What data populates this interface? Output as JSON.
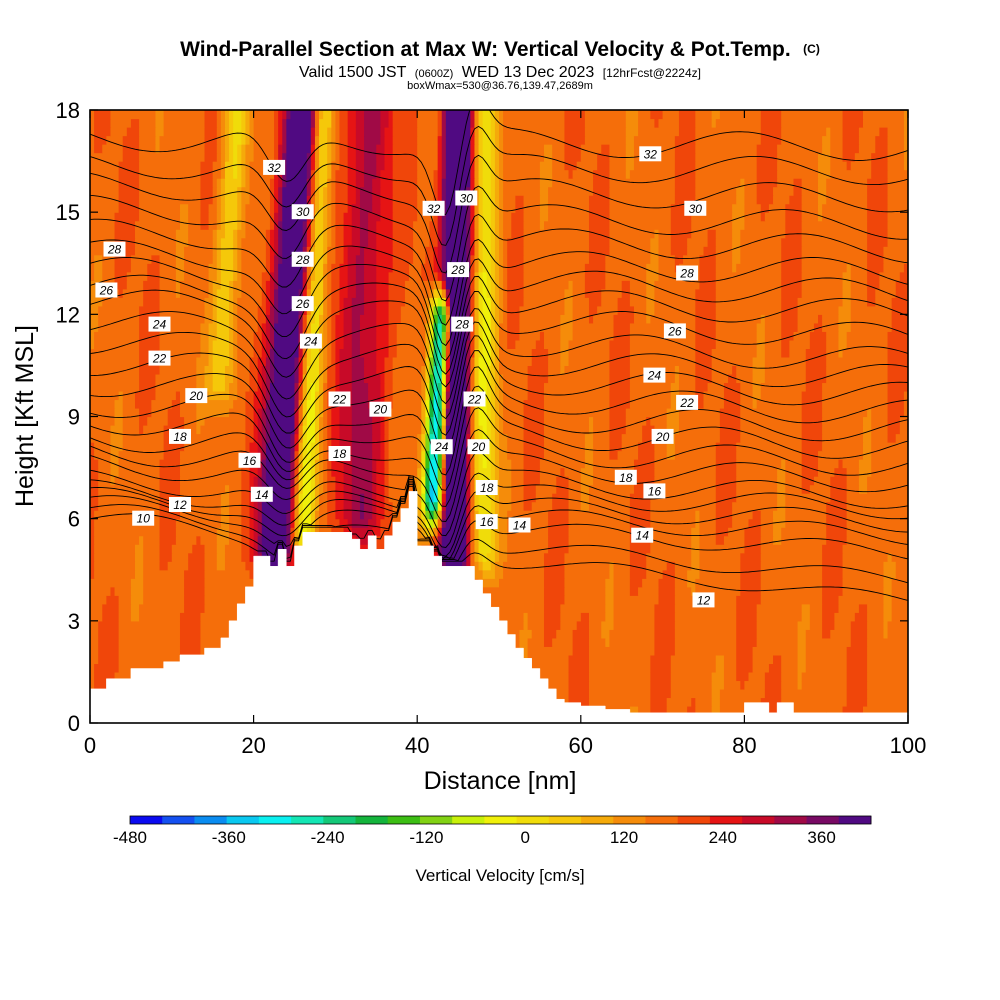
{
  "header": {
    "title": "Wind-Parallel Section at Max W: Vertical Velocity & Pot.Temp.",
    "copyright": "(C)",
    "valid_prefix": "Valid 1500 JST",
    "valid_utc": "(0600Z)",
    "valid_date": "WED 13 Dec 2023",
    "forecast": "[12hrFcst@2224z]",
    "box_info": "boxWmax=530@36.76,139.47,2689m"
  },
  "chart_data": {
    "type": "heatmap",
    "xlabel": "Distance [nm]",
    "ylabel": "Height [Kft MSL]",
    "xlim": [
      0,
      100
    ],
    "ylim": [
      0,
      18
    ],
    "x_ticks": [
      "0",
      "20",
      "40",
      "60",
      "80",
      "100"
    ],
    "y_ticks": [
      "0",
      "3",
      "6",
      "9",
      "12",
      "15",
      "18"
    ],
    "x_tick_values": [
      0,
      20,
      40,
      60,
      80,
      100
    ],
    "y_tick_values": [
      0,
      3,
      6,
      9,
      12,
      15,
      18
    ],
    "colorbar": {
      "label": "Vertical Velocity [cm/s]",
      "min": -480,
      "max": 420,
      "step": 30,
      "tick_values": [
        -480,
        -360,
        -240,
        -120,
        0,
        120,
        240,
        360
      ],
      "tick_labels": [
        "-480",
        "-360",
        "-240",
        "-120",
        "0",
        "120",
        "240",
        "360"
      ],
      "colors": [
        "#0a0af0",
        "#1450f0",
        "#0a8cf0",
        "#0ac8f0",
        "#0af0f0",
        "#14e6b4",
        "#14c878",
        "#14b43c",
        "#3cbe14",
        "#82d214",
        "#c8f00a",
        "#f0f00a",
        "#f0dc0a",
        "#f5c80a",
        "#f5aa0a",
        "#f58c0a",
        "#f56e0a",
        "#f0460a",
        "#e61414",
        "#c80a28",
        "#a00a46",
        "#780a64",
        "#500a82"
      ]
    },
    "terrain_profile": {
      "x": [
        0,
        2,
        2,
        5,
        5,
        9,
        9,
        11,
        11,
        14,
        14,
        16,
        16,
        17,
        17,
        18,
        18,
        19,
        19,
        20,
        20,
        21,
        21,
        22,
        22,
        23,
        23,
        24,
        24,
        25,
        25,
        26,
        26,
        27,
        27,
        28,
        28,
        32,
        32,
        33,
        33,
        34,
        34,
        35,
        35,
        36,
        36,
        37,
        37,
        38,
        38,
        39,
        39,
        40,
        40,
        42,
        42,
        43,
        43,
        47,
        47,
        48,
        48,
        49,
        49,
        50,
        50,
        51,
        51,
        52,
        52,
        53,
        53,
        54,
        54,
        55,
        55,
        56,
        56,
        57,
        57,
        58,
        58,
        60,
        60,
        63,
        63,
        66,
        66,
        80,
        80,
        83,
        83,
        84,
        84,
        86,
        86,
        90,
        90,
        100
      ],
      "y": [
        1.0,
        1.0,
        1.3,
        1.3,
        1.6,
        1.6,
        1.8,
        1.8,
        2.0,
        2.0,
        2.2,
        2.2,
        2.5,
        2.5,
        3.0,
        3.0,
        3.5,
        3.5,
        4.0,
        4.0,
        4.9,
        4.9,
        4.9,
        4.9,
        4.6,
        4.6,
        5.1,
        5.1,
        4.6,
        4.6,
        5.2,
        5.2,
        5.6,
        5.6,
        5.6,
        5.6,
        5.6,
        5.6,
        5.4,
        5.4,
        5.1,
        5.1,
        5.5,
        5.5,
        5.1,
        5.1,
        5.5,
        5.5,
        5.9,
        5.9,
        6.3,
        6.3,
        6.8,
        6.8,
        5.2,
        5.2,
        4.9,
        4.9,
        4.6,
        4.6,
        4.2,
        4.2,
        3.8,
        3.8,
        3.4,
        3.4,
        3.0,
        3.0,
        2.6,
        2.6,
        2.2,
        2.2,
        1.9,
        1.9,
        1.6,
        1.6,
        1.3,
        1.3,
        1.0,
        1.0,
        0.7,
        0.7,
        0.6,
        0.6,
        0.5,
        0.5,
        0.4,
        0.4,
        0.3,
        0.3,
        0.6,
        0.6,
        0.3,
        0.3,
        0.6,
        0.6,
        0.3,
        0.3,
        0.3,
        0.3
      ]
    },
    "updrafts": [
      {
        "x": 22.5,
        "x_top": 26,
        "y_bottom": 5,
        "y_top": 18,
        "width": 2.2,
        "value": 270
      },
      {
        "x": 44.5,
        "x_top": 45,
        "y_bottom": 5,
        "y_top": 18,
        "width": 1.6,
        "value": 400
      },
      {
        "x": 33,
        "x_top": 34,
        "y_bottom": 6,
        "y_top": 18,
        "width": 3,
        "value": 110
      }
    ],
    "downdrafts": [
      {
        "x": 26,
        "x_top": 28.5,
        "y_bottom": 5.5,
        "y_top": 18,
        "width": 1.4,
        "value": -170
      },
      {
        "x": 42,
        "x_top": 43,
        "y_bottom": 6.5,
        "y_top": 12,
        "width": 1.3,
        "value": -420
      },
      {
        "x": 48,
        "x_top": 48.5,
        "y_bottom": 5,
        "y_top": 18,
        "width": 1.6,
        "value": -140
      },
      {
        "x": 16,
        "x_top": 18,
        "y_bottom": 10,
        "y_top": 18,
        "width": 1.6,
        "value": -110
      }
    ],
    "isentropes": {
      "levels": [
        10,
        11,
        12,
        13,
        14,
        15,
        16,
        17,
        18,
        19,
        20,
        21,
        22,
        23,
        24,
        25,
        26,
        27,
        28,
        29,
        30,
        31,
        32,
        33
      ],
      "base_height_left": [
        6.0,
        6.2,
        6.4,
        6.6,
        6.8,
        7.1,
        7.6,
        8.0,
        8.4,
        8.9,
        9.4,
        10.0,
        10.6,
        11.2,
        11.8,
        12.4,
        12.8,
        13.3,
        13.8,
        14.4,
        15.1,
        15.8,
        16.4,
        17.2
      ],
      "base_height_right": [
        3.6,
        4.2,
        5.0,
        5.5,
        5.9,
        6.3,
        6.6,
        7.1,
        7.6,
        8.1,
        8.6,
        9.1,
        9.6,
        10.1,
        10.6,
        11.3,
        12.0,
        12.6,
        13.2,
        13.9,
        14.6,
        15.4,
        16.2,
        16.9
      ],
      "labels": [
        {
          "x": 3,
          "y": 13.9,
          "text": "28"
        },
        {
          "x": 2,
          "y": 12.7,
          "text": "26"
        },
        {
          "x": 8.5,
          "y": 11.7,
          "text": "24"
        },
        {
          "x": 8.5,
          "y": 10.7,
          "text": "22"
        },
        {
          "x": 13,
          "y": 9.6,
          "text": "20"
        },
        {
          "x": 11,
          "y": 8.4,
          "text": "18"
        },
        {
          "x": 19.5,
          "y": 7.7,
          "text": "16"
        },
        {
          "x": 21,
          "y": 6.7,
          "text": "14"
        },
        {
          "x": 11,
          "y": 6.4,
          "text": "12"
        },
        {
          "x": 6.5,
          "y": 6.0,
          "text": "10"
        },
        {
          "x": 22.5,
          "y": 16.3,
          "text": "32"
        },
        {
          "x": 26,
          "y": 15.0,
          "text": "30"
        },
        {
          "x": 26,
          "y": 13.6,
          "text": "28"
        },
        {
          "x": 26,
          "y": 12.3,
          "text": "26"
        },
        {
          "x": 27,
          "y": 11.2,
          "text": "24"
        },
        {
          "x": 30.5,
          "y": 9.5,
          "text": "22"
        },
        {
          "x": 35.5,
          "y": 9.2,
          "text": "20"
        },
        {
          "x": 30.5,
          "y": 7.9,
          "text": "18"
        },
        {
          "x": 42,
          "y": 15.1,
          "text": "32"
        },
        {
          "x": 46,
          "y": 15.4,
          "text": "30"
        },
        {
          "x": 45,
          "y": 13.3,
          "text": "28"
        },
        {
          "x": 45.5,
          "y": 11.7,
          "text": "28"
        },
        {
          "x": 47,
          "y": 9.5,
          "text": "22"
        },
        {
          "x": 43,
          "y": 8.1,
          "text": "24"
        },
        {
          "x": 47.5,
          "y": 8.1,
          "text": "20"
        },
        {
          "x": 48.5,
          "y": 6.9,
          "text": "18"
        },
        {
          "x": 48.5,
          "y": 5.9,
          "text": "16"
        },
        {
          "x": 52.5,
          "y": 5.8,
          "text": "14"
        },
        {
          "x": 68.5,
          "y": 16.7,
          "text": "32"
        },
        {
          "x": 74,
          "y": 15.1,
          "text": "30"
        },
        {
          "x": 73,
          "y": 13.2,
          "text": "28"
        },
        {
          "x": 71.5,
          "y": 11.5,
          "text": "26"
        },
        {
          "x": 69,
          "y": 10.2,
          "text": "24"
        },
        {
          "x": 73,
          "y": 9.4,
          "text": "22"
        },
        {
          "x": 70,
          "y": 8.4,
          "text": "20"
        },
        {
          "x": 65.5,
          "y": 7.2,
          "text": "18"
        },
        {
          "x": 69,
          "y": 6.8,
          "text": "16"
        },
        {
          "x": 67.5,
          "y": 5.5,
          "text": "14"
        },
        {
          "x": 75,
          "y": 3.6,
          "text": "12"
        }
      ]
    }
  }
}
